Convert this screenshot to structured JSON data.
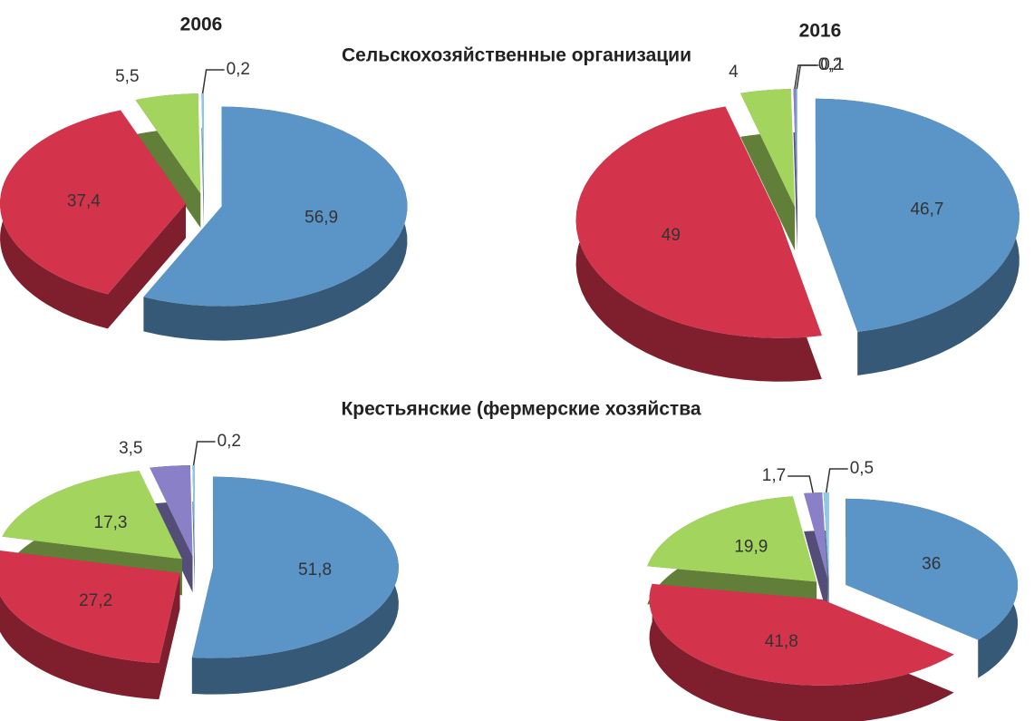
{
  "headers": [
    "2006",
    "2016"
  ],
  "sections": [
    "Сельскохозяйственные организации",
    "Крестьянские (фермерские хозяйства"
  ],
  "chart_data": [
    {
      "type": "pie",
      "values": [
        56.9,
        37.4,
        5.5,
        0.2
      ],
      "value_labels": [
        "56,9",
        "37,4",
        "5,5",
        "0,2"
      ],
      "colors": [
        "#5b95c8",
        "#d3344c",
        "#a2d45e",
        "#8ec8ea"
      ]
    },
    {
      "type": "pie",
      "values": [
        46.7,
        49,
        4,
        0.2,
        0.1
      ],
      "value_labels": [
        "46,7",
        "49",
        "4",
        "0,2",
        "0,1"
      ],
      "colors": [
        "#5b95c8",
        "#d3344c",
        "#a2d45e",
        "#8a80c8",
        "#8ec8ea"
      ]
    },
    {
      "type": "pie",
      "values": [
        51.8,
        27.2,
        17.3,
        3.5,
        0.2
      ],
      "value_labels": [
        "51,8",
        "27,2",
        "17,3",
        "3,5",
        "0,2"
      ],
      "colors": [
        "#5b95c8",
        "#d3344c",
        "#a2d45e",
        "#8a80c8",
        "#8ec8ea"
      ]
    },
    {
      "type": "pie",
      "values": [
        36,
        41.8,
        19.9,
        1.7,
        0.5
      ],
      "value_labels": [
        "36",
        "41,8",
        "19,9",
        "1,7",
        "0,5"
      ],
      "colors": [
        "#5b95c8",
        "#d3344c",
        "#a2d45e",
        "#8a80c8",
        "#8ec8ea"
      ]
    }
  ]
}
